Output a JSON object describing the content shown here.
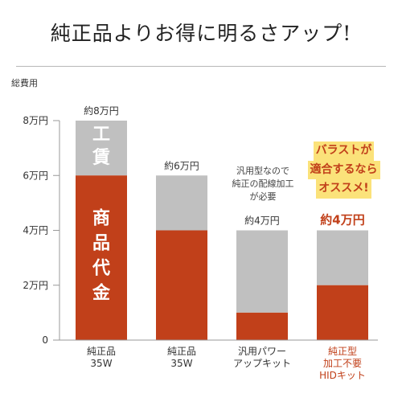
{
  "headline": "純正品よりお得に明るさアップ!",
  "colors": {
    "labor": "#c0c0c0",
    "product": "#c1401a",
    "accent": "#c1401a",
    "highlight": "#fbe27a",
    "axis": "#999999",
    "text": "#333333"
  },
  "notes": {
    "wiring": [
      "汎用型なので",
      "純正の配線加工",
      "が必要"
    ],
    "ballast": [
      "バラストが",
      "適合するなら",
      "オススメ!"
    ]
  },
  "chart_data": {
    "type": "bar",
    "ylabel": "総費用",
    "yticks": [
      "0",
      "2万円",
      "4万円",
      "6万円",
      "8万円"
    ],
    "ylim": [
      0,
      80000
    ],
    "series_labels": {
      "labor": "工賃",
      "product": "商品代金"
    },
    "categories": [
      [
        "純正品",
        "35W"
      ],
      [
        "純正品",
        "35W"
      ],
      [
        "汎用パワー",
        "アップキット"
      ],
      [
        "純正型",
        "加工不要",
        "HIDキット"
      ]
    ],
    "totals": [
      80000,
      60000,
      40000,
      40000
    ],
    "product_cost": [
      60000,
      40000,
      10000,
      20000
    ],
    "price_labels": [
      "約8万円",
      "約6万円",
      "約4万円",
      "約4万円"
    ],
    "highlight_index": 3
  }
}
